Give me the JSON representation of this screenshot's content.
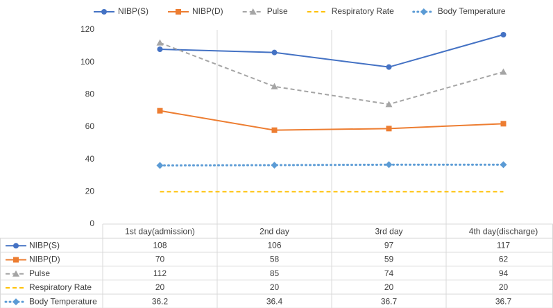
{
  "chart_data": {
    "type": "line",
    "categories": [
      "1st day(admission)",
      "2nd day",
      "3rd day",
      "4th day(discharge)"
    ],
    "series": [
      {
        "name": "NIBP(S)",
        "color": "#4472c4",
        "marker": "circle",
        "dash": "solid",
        "values": [
          108,
          106,
          97,
          117
        ]
      },
      {
        "name": "NIBP(D)",
        "color": "#ed7d31",
        "marker": "square",
        "dash": "solid",
        "values": [
          70,
          58,
          59,
          62
        ]
      },
      {
        "name": "Pulse",
        "color": "#a5a5a5",
        "marker": "triangle",
        "dash": "dashed",
        "values": [
          112,
          85,
          74,
          94
        ]
      },
      {
        "name": "Respiratory Rate",
        "color": "#ffc000",
        "marker": "none",
        "dash": "dashed",
        "values": [
          20,
          20,
          20,
          20
        ]
      },
      {
        "name": "Body Temperature",
        "color": "#5b9bd5",
        "marker": "diamond",
        "dash": "dotted",
        "values": [
          36.2,
          36.4,
          36.7,
          36.7
        ]
      }
    ],
    "ylim": [
      0,
      120
    ],
    "yticks": [
      0,
      20,
      40,
      60,
      80,
      100,
      120
    ],
    "legend": "top",
    "data_table": true
  }
}
